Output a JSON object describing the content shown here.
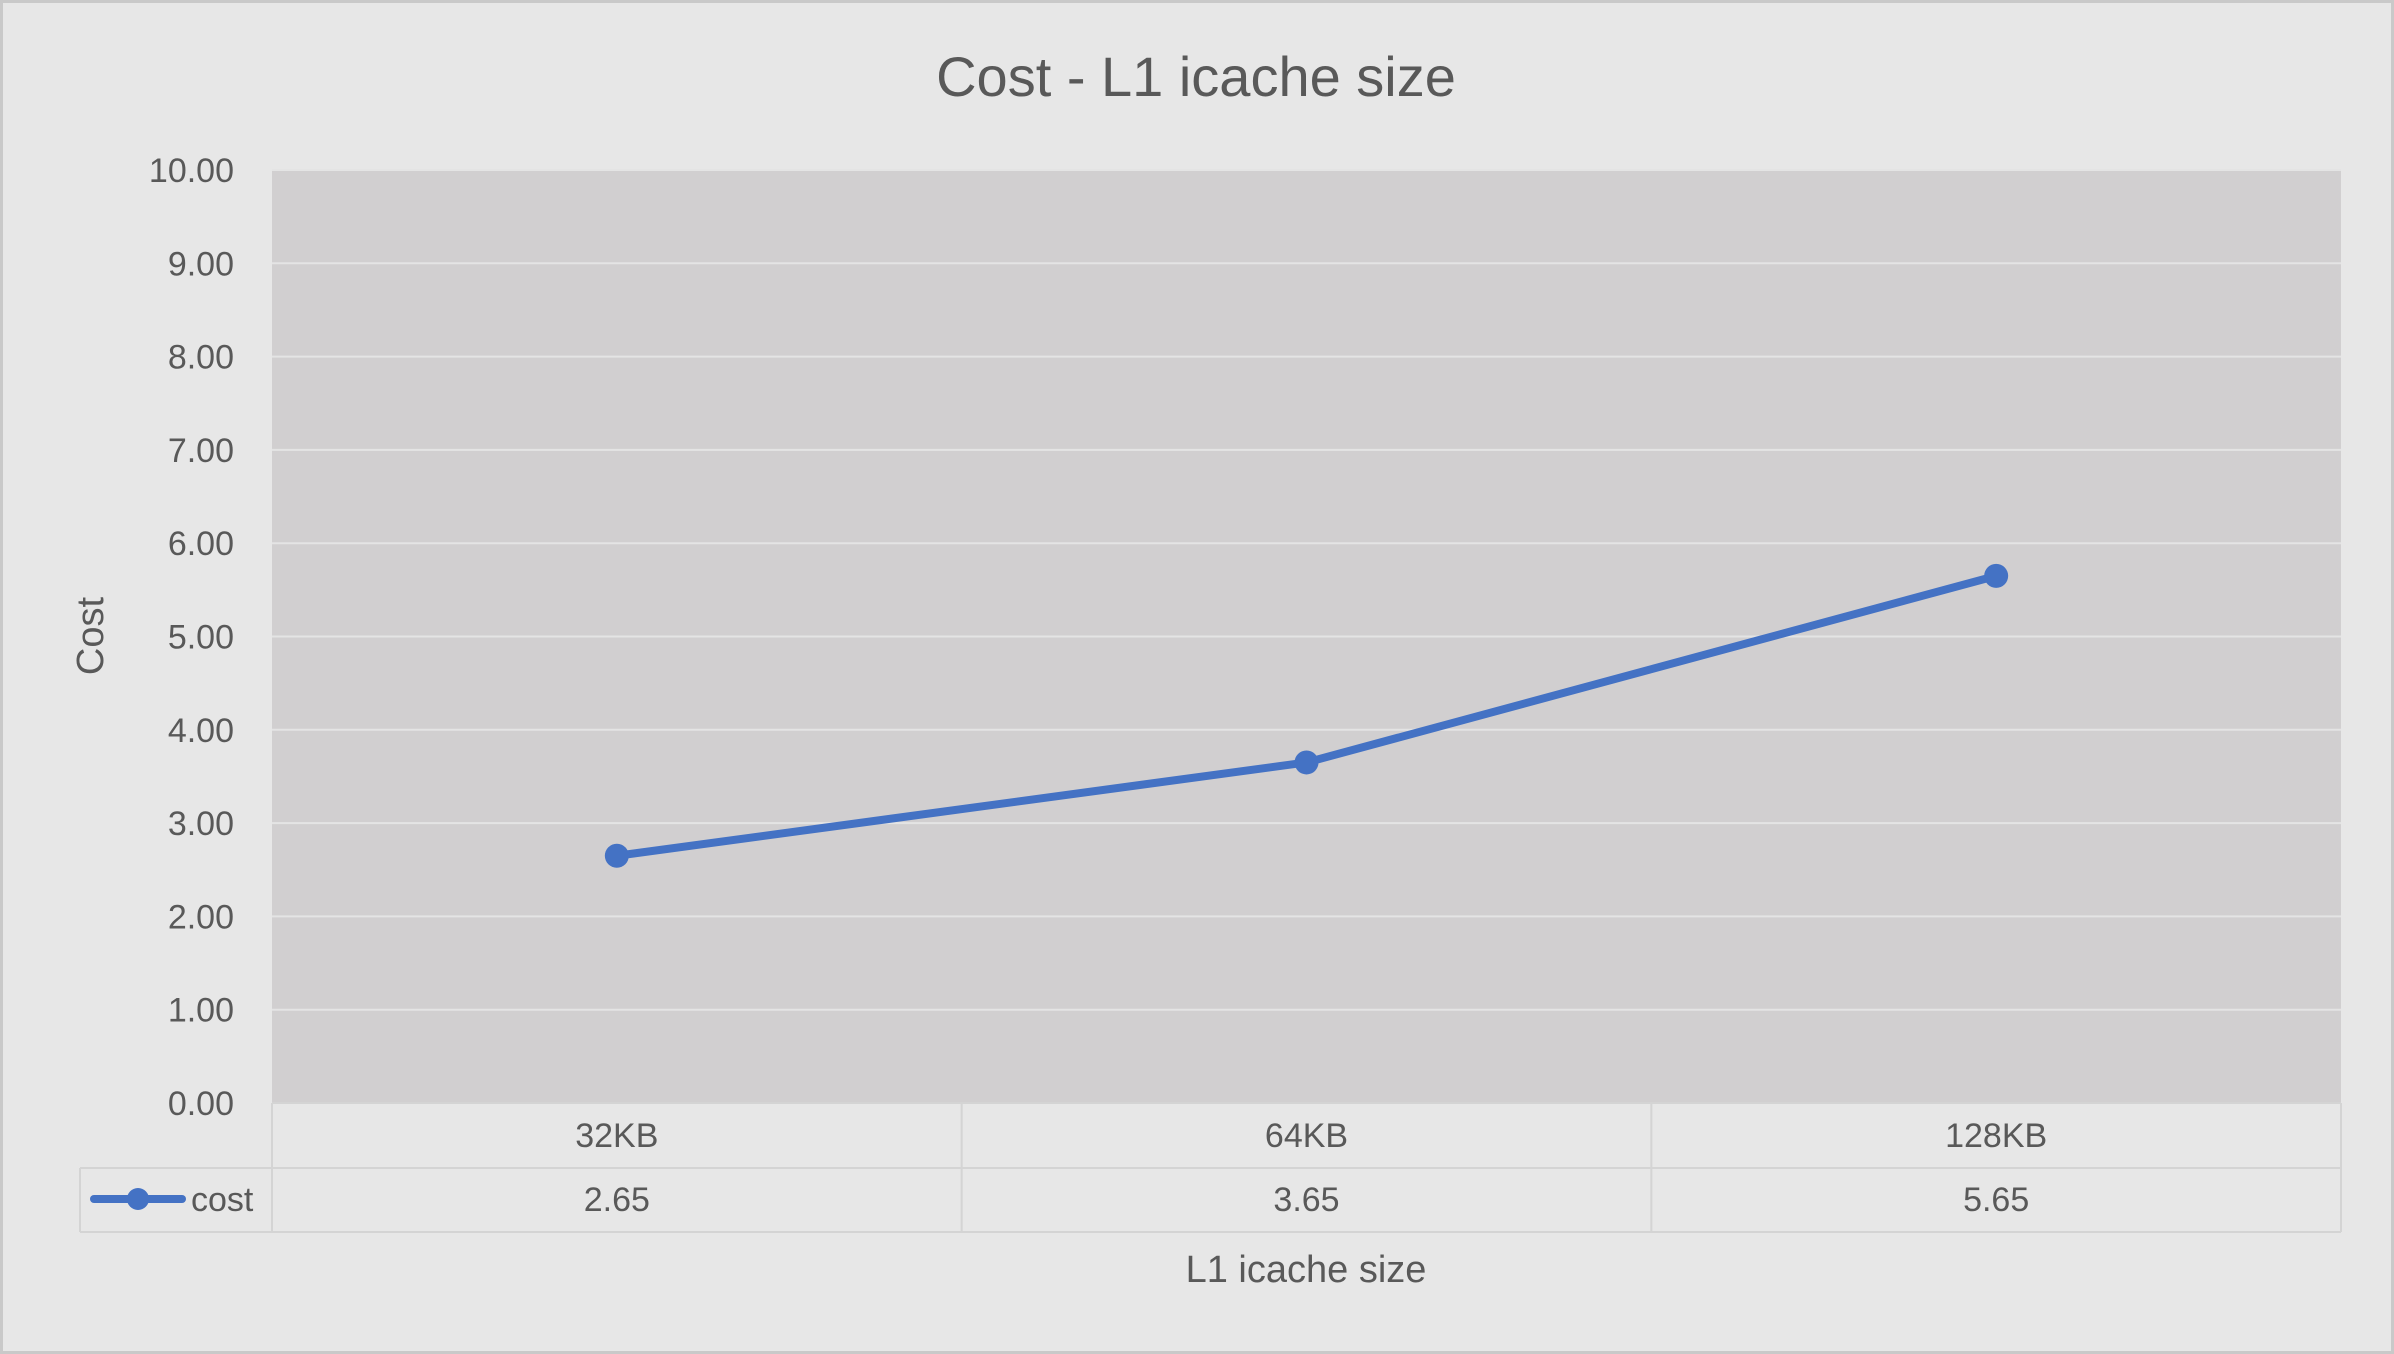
{
  "chart_data": {
    "type": "line",
    "title": "Cost - L1 icache size",
    "xlabel": "L1 icache size",
    "ylabel": "Cost",
    "categories": [
      "32KB",
      "64KB",
      "128KB"
    ],
    "series": [
      {
        "name": "cost",
        "values": [
          2.65,
          3.65,
          5.65
        ],
        "labels": [
          "2.65",
          "3.65",
          "5.65"
        ],
        "color": "#4472c4"
      }
    ],
    "ylim": [
      0,
      10
    ],
    "yticks": [
      "0.00",
      "1.00",
      "2.00",
      "3.00",
      "4.00",
      "5.00",
      "6.00",
      "7.00",
      "8.00",
      "9.00",
      "10.00"
    ],
    "grid": true,
    "legend": "data-table-left",
    "colors": {
      "line": "#4472c4",
      "plot_background": "#d1cfd0",
      "chart_background": "#e7e7e7",
      "text": "#595959"
    }
  }
}
